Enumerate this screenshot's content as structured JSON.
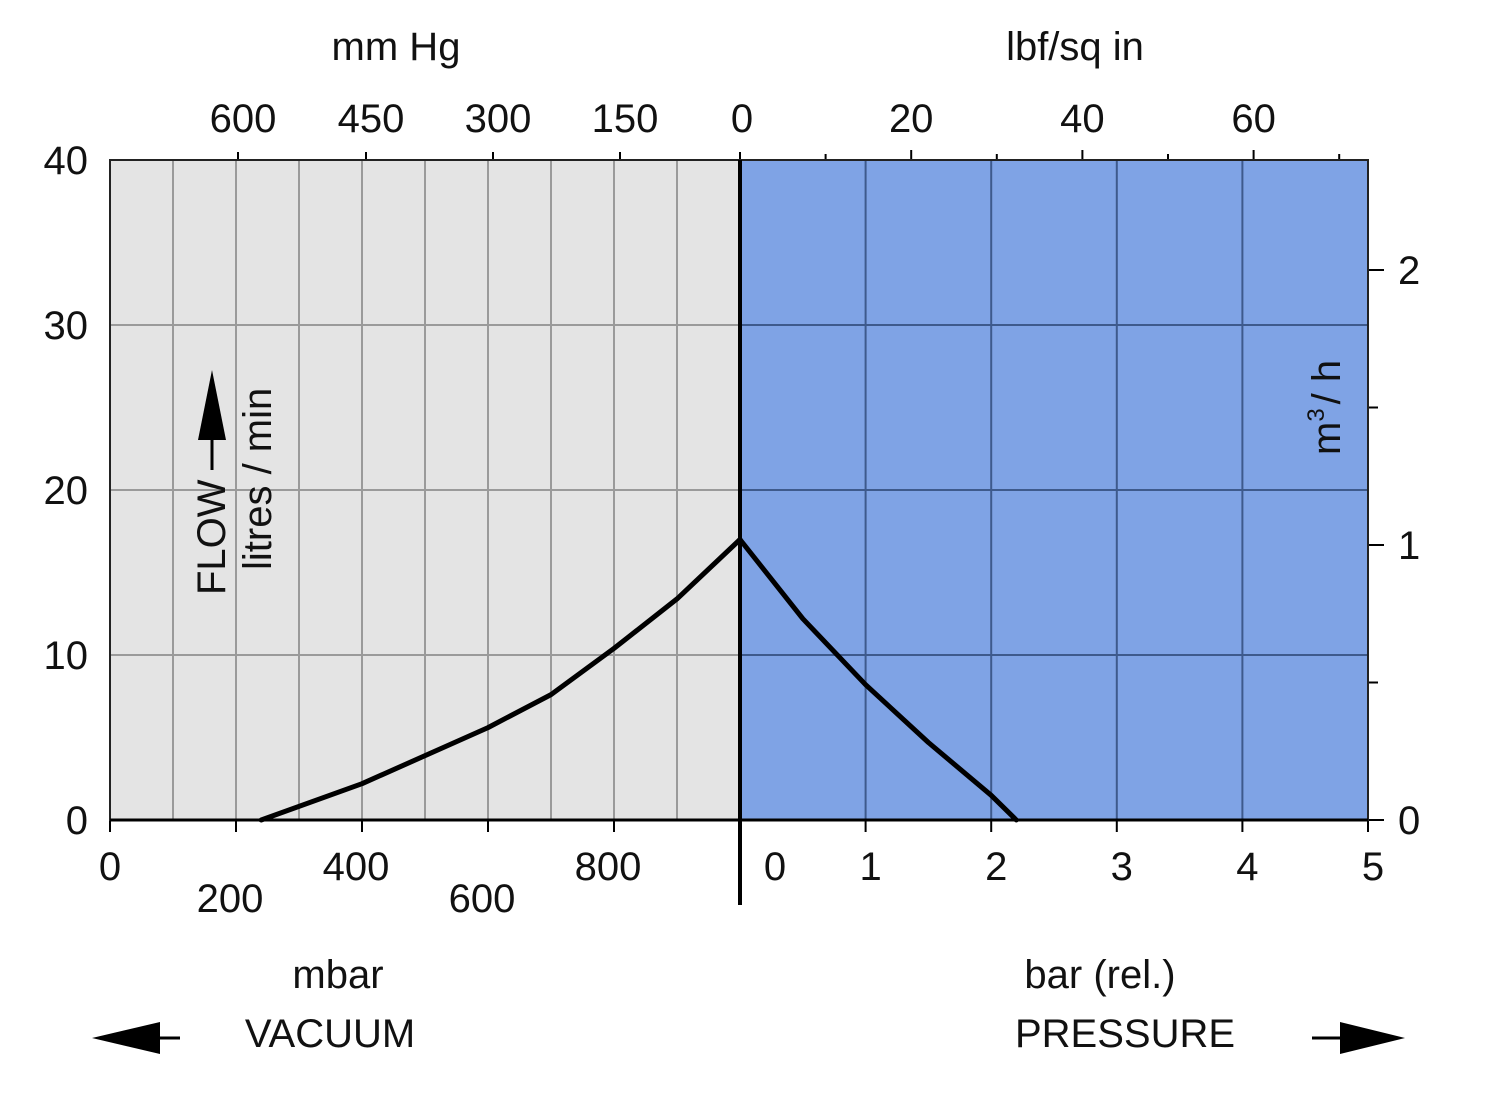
{
  "chart_data": {
    "type": "line",
    "colors": {
      "vacuum_bg": "#e4e4e4",
      "pressure_bg": "#7fa3e5",
      "grid_vacuum": "#9a9a9a",
      "grid_pressure": "#3e5a8c",
      "curve": "#000000"
    },
    "axes": {
      "left_y": {
        "label_line1": "FLOW",
        "label_line2": "litres / min",
        "ticks": [
          "0",
          "10",
          "20",
          "30",
          "40"
        ],
        "range": [
          0,
          40
        ]
      },
      "right_y": {
        "label_base": "m",
        "label_sup": "3",
        "label_rest": "/ h",
        "ticks": [
          "0",
          "1",
          "2"
        ],
        "range": [
          0,
          2.4
        ]
      },
      "bottom_vacuum": {
        "label": "mbar",
        "ticks_upper": [
          "0",
          "400",
          "800"
        ],
        "ticks_lower": [
          "200",
          "600"
        ],
        "range": [
          0,
          1000
        ]
      },
      "bottom_pressure": {
        "label": "bar (rel.)",
        "ticks": [
          "0",
          "1",
          "2",
          "3",
          "4",
          "5"
        ],
        "range": [
          0,
          5
        ]
      },
      "top_vacuum": {
        "label": "mm Hg",
        "ticks": [
          "600",
          "450",
          "300",
          "150",
          "0"
        ]
      },
      "top_pressure": {
        "label": "lbf/sq in",
        "ticks": [
          "20",
          "40",
          "60"
        ]
      }
    },
    "direction_labels": {
      "vacuum": "VACUUM",
      "pressure": "PRESSURE"
    },
    "series": [
      {
        "region": "vacuum",
        "x_unit": "mbar",
        "points": [
          [
            240,
            0
          ],
          [
            400,
            2.2
          ],
          [
            600,
            5.6
          ],
          [
            700,
            7.6
          ],
          [
            800,
            10.4
          ],
          [
            900,
            13.4
          ],
          [
            1000,
            17
          ]
        ]
      },
      {
        "region": "pressure",
        "x_unit": "bar (rel.)",
        "points": [
          [
            0,
            17
          ],
          [
            0.5,
            12.2
          ],
          [
            1,
            8.2
          ],
          [
            1.5,
            4.7
          ],
          [
            2,
            1.5
          ],
          [
            2.2,
            0
          ]
        ]
      }
    ]
  }
}
